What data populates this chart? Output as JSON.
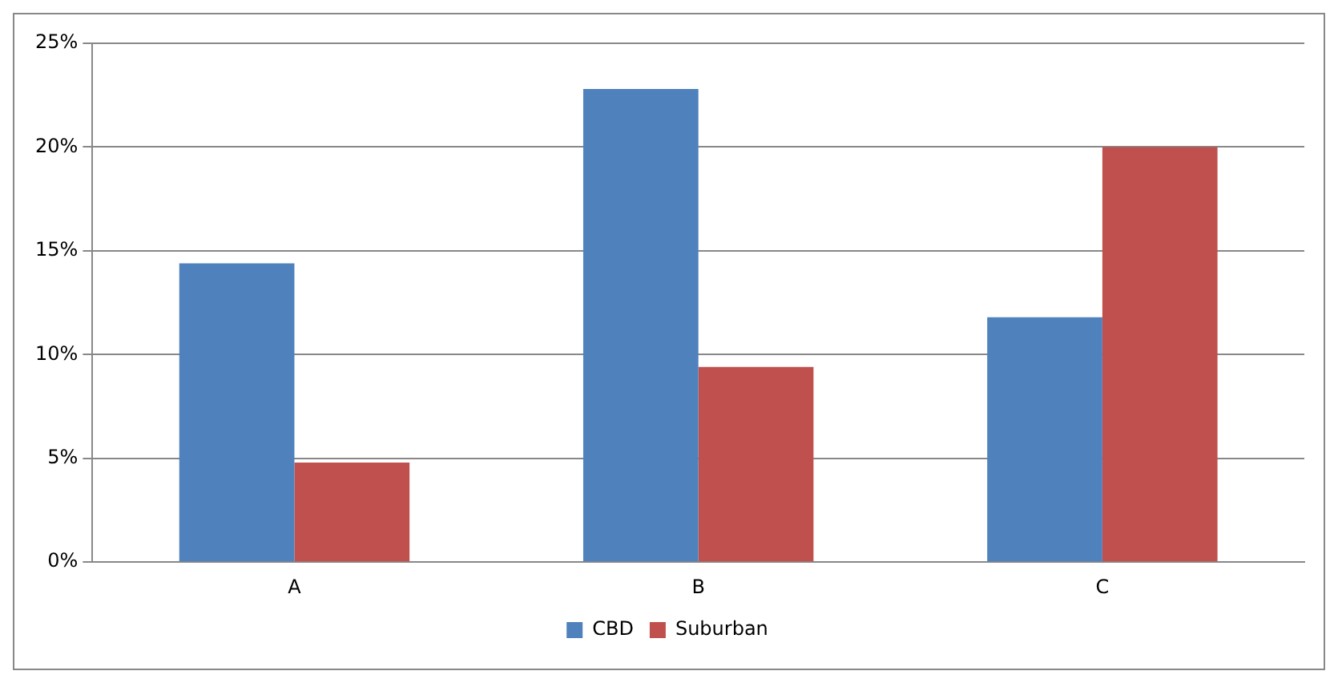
{
  "chart_data": {
    "type": "bar",
    "categories": [
      "A",
      "B",
      "C"
    ],
    "series": [
      {
        "name": "CBD",
        "color": "#4f81bd",
        "values": [
          14.4,
          22.8,
          11.8
        ]
      },
      {
        "name": "Suburban",
        "color": "#c0504d",
        "values": [
          4.8,
          9.4,
          20.0
        ]
      }
    ],
    "ylim": [
      0,
      25
    ],
    "yticks": [
      {
        "value": 0,
        "label": "0%"
      },
      {
        "value": 5,
        "label": "5%"
      },
      {
        "value": 10,
        "label": "10%"
      },
      {
        "value": 15,
        "label": "15%"
      },
      {
        "value": 20,
        "label": "20%"
      },
      {
        "value": 25,
        "label": "25%"
      }
    ],
    "grid": "y",
    "legend": "bottom"
  }
}
